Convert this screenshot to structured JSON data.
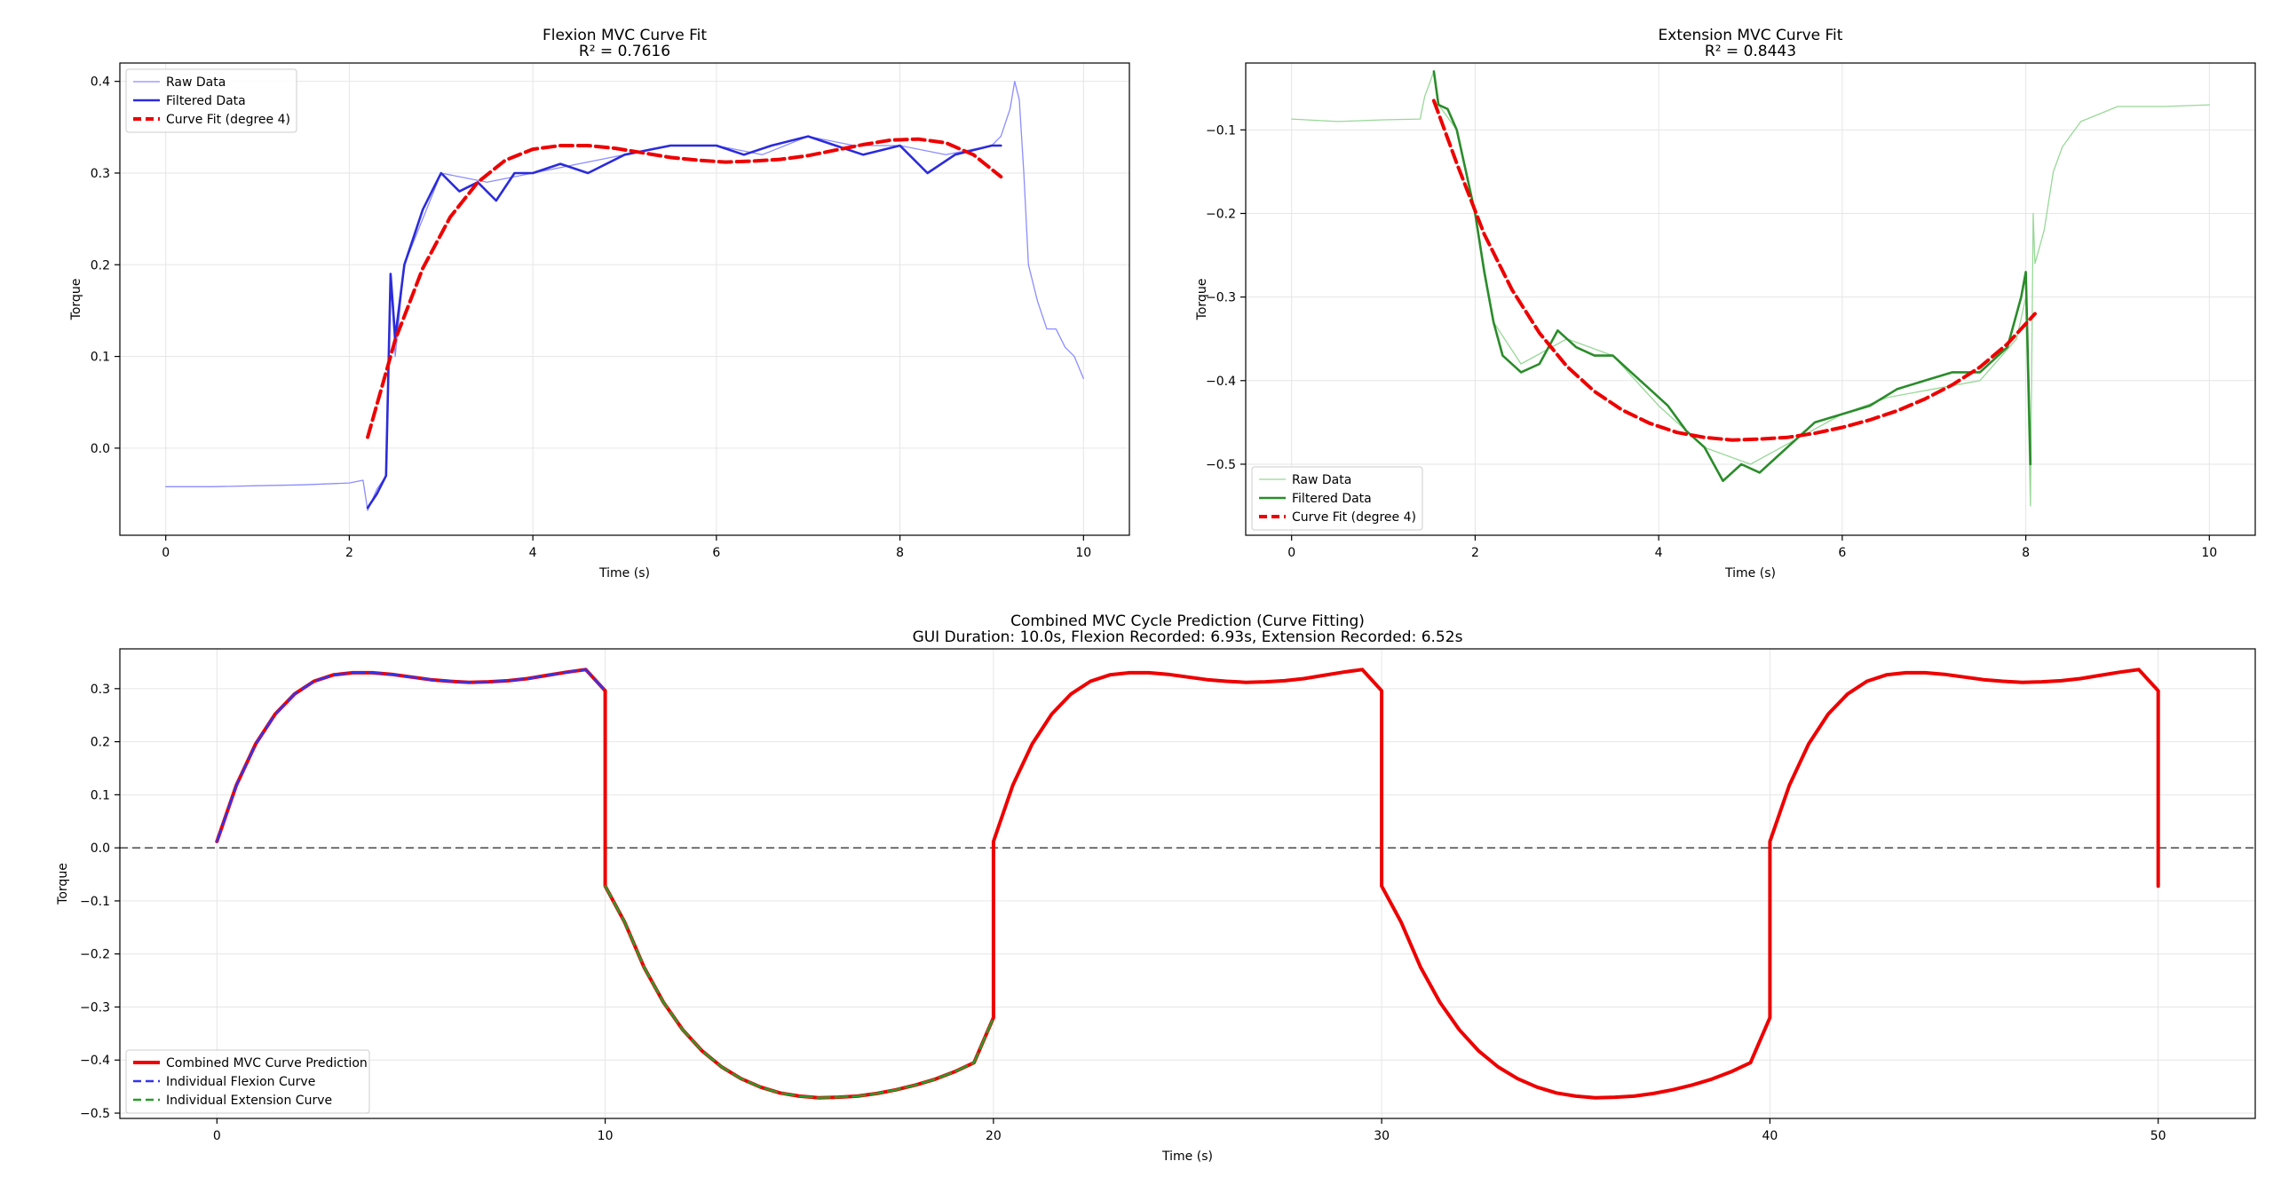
{
  "chart_data": [
    {
      "type": "line",
      "title": "Flexion MVC Curve Fit",
      "subtitle": "R² = 0.7616",
      "xlabel": "Time (s)",
      "ylabel": "Torque",
      "xlim": [
        -0.5,
        10.5
      ],
      "ylim": [
        -0.095,
        0.42
      ],
      "xticks": [
        0,
        2,
        4,
        6,
        8,
        10
      ],
      "yticks": [
        0.0,
        0.1,
        0.2,
        0.3,
        0.4
      ],
      "grid": true,
      "legend_position": "upper left",
      "series": [
        {
          "name": "Raw Data",
          "color": "#8c8cff",
          "style": "thin",
          "points": [
            [
              0,
              -0.042
            ],
            [
              0.5,
              -0.042
            ],
            [
              1.0,
              -0.041
            ],
            [
              1.5,
              -0.04
            ],
            [
              2.0,
              -0.038
            ],
            [
              2.15,
              -0.035
            ],
            [
              2.2,
              -0.068
            ],
            [
              2.3,
              -0.045
            ],
            [
              2.4,
              -0.03
            ],
            [
              2.45,
              0.19
            ],
            [
              2.5,
              0.1
            ],
            [
              2.6,
              0.2
            ],
            [
              2.8,
              0.25
            ],
            [
              3.0,
              0.3
            ],
            [
              3.5,
              0.29
            ],
            [
              4.0,
              0.3
            ],
            [
              4.5,
              0.31
            ],
            [
              5.0,
              0.32
            ],
            [
              5.5,
              0.33
            ],
            [
              6.0,
              0.33
            ],
            [
              6.5,
              0.32
            ],
            [
              7.0,
              0.34
            ],
            [
              7.5,
              0.33
            ],
            [
              8.0,
              0.33
            ],
            [
              8.5,
              0.32
            ],
            [
              9.0,
              0.33
            ],
            [
              9.1,
              0.34
            ],
            [
              9.2,
              0.37
            ],
            [
              9.25,
              0.4
            ],
            [
              9.3,
              0.38
            ],
            [
              9.35,
              0.3
            ],
            [
              9.4,
              0.2
            ],
            [
              9.5,
              0.16
            ],
            [
              9.6,
              0.13
            ],
            [
              9.7,
              0.13
            ],
            [
              9.8,
              0.11
            ],
            [
              9.9,
              0.1
            ],
            [
              10.0,
              0.076
            ]
          ]
        },
        {
          "name": "Filtered Data",
          "color": "#2b2bdc",
          "style": "solid",
          "points": [
            [
              2.2,
              -0.065
            ],
            [
              2.3,
              -0.05
            ],
            [
              2.4,
              -0.03
            ],
            [
              2.45,
              0.19
            ],
            [
              2.5,
              0.12
            ],
            [
              2.6,
              0.2
            ],
            [
              2.7,
              0.23
            ],
            [
              2.8,
              0.26
            ],
            [
              2.9,
              0.28
            ],
            [
              3.0,
              0.3
            ],
            [
              3.2,
              0.28
            ],
            [
              3.4,
              0.29
            ],
            [
              3.6,
              0.27
            ],
            [
              3.8,
              0.3
            ],
            [
              4.0,
              0.3
            ],
            [
              4.3,
              0.31
            ],
            [
              4.6,
              0.3
            ],
            [
              5.0,
              0.32
            ],
            [
              5.5,
              0.33
            ],
            [
              6.0,
              0.33
            ],
            [
              6.3,
              0.32
            ],
            [
              6.6,
              0.33
            ],
            [
              7.0,
              0.34
            ],
            [
              7.3,
              0.33
            ],
            [
              7.6,
              0.32
            ],
            [
              8.0,
              0.33
            ],
            [
              8.3,
              0.3
            ],
            [
              8.6,
              0.32
            ],
            [
              9.0,
              0.33
            ],
            [
              9.1,
              0.33
            ]
          ]
        },
        {
          "name": "Curve Fit (degree 4)",
          "color": "#ee0000",
          "style": "dashed",
          "points": [
            [
              2.2,
              0.012
            ],
            [
              2.5,
              0.118
            ],
            [
              2.8,
              0.196
            ],
            [
              3.1,
              0.252
            ],
            [
              3.4,
              0.29
            ],
            [
              3.7,
              0.314
            ],
            [
              4.0,
              0.326
            ],
            [
              4.3,
              0.33
            ],
            [
              4.6,
              0.33
            ],
            [
              4.9,
              0.327
            ],
            [
              5.2,
              0.322
            ],
            [
              5.5,
              0.317
            ],
            [
              5.8,
              0.314
            ],
            [
              6.1,
              0.312
            ],
            [
              6.4,
              0.313
            ],
            [
              6.7,
              0.315
            ],
            [
              7.0,
              0.319
            ],
            [
              7.3,
              0.325
            ],
            [
              7.6,
              0.331
            ],
            [
              7.9,
              0.336
            ],
            [
              8.2,
              0.337
            ],
            [
              8.5,
              0.333
            ],
            [
              8.8,
              0.32
            ],
            [
              9.1,
              0.296
            ]
          ]
        }
      ]
    },
    {
      "type": "line",
      "title": "Extension MVC Curve Fit",
      "subtitle": "R² = 0.8443",
      "xlabel": "Time (s)",
      "ylabel": "Torque",
      "xlim": [
        -0.5,
        10.5
      ],
      "ylim": [
        -0.585,
        -0.02
      ],
      "xticks": [
        0,
        2,
        4,
        6,
        8,
        10
      ],
      "yticks": [
        -0.1,
        -0.2,
        -0.3,
        -0.4,
        -0.5
      ],
      "grid": true,
      "legend_position": "lower left",
      "series": [
        {
          "name": "Raw Data",
          "color": "#98d898",
          "style": "thin",
          "points": [
            [
              0,
              -0.087
            ],
            [
              0.5,
              -0.09
            ],
            [
              1.0,
              -0.088
            ],
            [
              1.4,
              -0.087
            ],
            [
              1.45,
              -0.06
            ],
            [
              1.55,
              -0.03
            ],
            [
              1.6,
              -0.07
            ],
            [
              1.8,
              -0.1
            ],
            [
              2.0,
              -0.2
            ],
            [
              2.2,
              -0.33
            ],
            [
              2.5,
              -0.38
            ],
            [
              3.0,
              -0.35
            ],
            [
              3.5,
              -0.37
            ],
            [
              4.0,
              -0.43
            ],
            [
              4.5,
              -0.48
            ],
            [
              5.0,
              -0.5
            ],
            [
              5.5,
              -0.47
            ],
            [
              6.0,
              -0.44
            ],
            [
              6.5,
              -0.42
            ],
            [
              7.0,
              -0.41
            ],
            [
              7.5,
              -0.4
            ],
            [
              7.9,
              -0.35
            ],
            [
              8.0,
              -0.3
            ],
            [
              8.05,
              -0.55
            ],
            [
              8.08,
              -0.2
            ],
            [
              8.1,
              -0.26
            ],
            [
              8.2,
              -0.22
            ],
            [
              8.3,
              -0.15
            ],
            [
              8.4,
              -0.12
            ],
            [
              8.6,
              -0.09
            ],
            [
              9.0,
              -0.072
            ],
            [
              9.5,
              -0.072
            ],
            [
              10.0,
              -0.07
            ]
          ]
        },
        {
          "name": "Filtered Data",
          "color": "#2a8c2a",
          "style": "solid",
          "points": [
            [
              1.55,
              -0.03
            ],
            [
              1.6,
              -0.07
            ],
            [
              1.7,
              -0.075
            ],
            [
              1.8,
              -0.1
            ],
            [
              1.9,
              -0.15
            ],
            [
              2.0,
              -0.2
            ],
            [
              2.1,
              -0.27
            ],
            [
              2.2,
              -0.33
            ],
            [
              2.3,
              -0.37
            ],
            [
              2.5,
              -0.39
            ],
            [
              2.7,
              -0.38
            ],
            [
              2.9,
              -0.34
            ],
            [
              3.1,
              -0.36
            ],
            [
              3.3,
              -0.37
            ],
            [
              3.5,
              -0.37
            ],
            [
              3.7,
              -0.39
            ],
            [
              3.9,
              -0.41
            ],
            [
              4.1,
              -0.43
            ],
            [
              4.3,
              -0.46
            ],
            [
              4.5,
              -0.48
            ],
            [
              4.7,
              -0.52
            ],
            [
              4.9,
              -0.5
            ],
            [
              5.1,
              -0.51
            ],
            [
              5.3,
              -0.49
            ],
            [
              5.5,
              -0.47
            ],
            [
              5.7,
              -0.45
            ],
            [
              6.0,
              -0.44
            ],
            [
              6.3,
              -0.43
            ],
            [
              6.6,
              -0.41
            ],
            [
              6.9,
              -0.4
            ],
            [
              7.2,
              -0.39
            ],
            [
              7.5,
              -0.39
            ],
            [
              7.8,
              -0.36
            ],
            [
              7.95,
              -0.3
            ],
            [
              8.0,
              -0.27
            ],
            [
              8.05,
              -0.5
            ]
          ]
        },
        {
          "name": "Curve Fit (degree 4)",
          "color": "#ee0000",
          "style": "dashed",
          "points": [
            [
              1.55,
              -0.065
            ],
            [
              1.8,
              -0.14
            ],
            [
              2.1,
              -0.225
            ],
            [
              2.4,
              -0.291
            ],
            [
              2.7,
              -0.343
            ],
            [
              3.0,
              -0.383
            ],
            [
              3.3,
              -0.413
            ],
            [
              3.6,
              -0.435
            ],
            [
              3.9,
              -0.451
            ],
            [
              4.2,
              -0.462
            ],
            [
              4.5,
              -0.468
            ],
            [
              4.8,
              -0.471
            ],
            [
              5.1,
              -0.47
            ],
            [
              5.4,
              -0.468
            ],
            [
              5.7,
              -0.463
            ],
            [
              6.0,
              -0.456
            ],
            [
              6.3,
              -0.447
            ],
            [
              6.6,
              -0.436
            ],
            [
              6.9,
              -0.422
            ],
            [
              7.2,
              -0.405
            ],
            [
              7.5,
              -0.384
            ],
            [
              7.8,
              -0.356
            ],
            [
              8.1,
              -0.32
            ]
          ]
        }
      ]
    },
    {
      "type": "line",
      "title": "Combined MVC Cycle Prediction (Curve Fitting)",
      "subtitle": "GUI Duration: 10.0s, Flexion Recorded: 6.93s, Extension Recorded: 6.52s",
      "xlabel": "Time (s)",
      "ylabel": "Torque",
      "xlim": [
        -2.5,
        52.5
      ],
      "ylim": [
        -0.51,
        0.375
      ],
      "xticks": [
        0,
        10,
        20,
        30,
        40,
        50
      ],
      "yticks": [
        0.3,
        0.2,
        0.1,
        0.0,
        -0.1,
        -0.2,
        -0.3,
        -0.4,
        -0.5
      ],
      "grid": true,
      "hline": {
        "y": 0.0,
        "color": "#555555",
        "style": "dashed"
      },
      "legend_position": "lower left",
      "cycle": {
        "period": 20,
        "flexion": [
          [
            0,
            0.012
          ],
          [
            0.5,
            0.118
          ],
          [
            1.0,
            0.196
          ],
          [
            1.5,
            0.252
          ],
          [
            2.0,
            0.29
          ],
          [
            2.5,
            0.314
          ],
          [
            3.0,
            0.326
          ],
          [
            3.5,
            0.33
          ],
          [
            4.0,
            0.33
          ],
          [
            4.5,
            0.327
          ],
          [
            5.0,
            0.322
          ],
          [
            5.5,
            0.317
          ],
          [
            6.0,
            0.314
          ],
          [
            6.5,
            0.312
          ],
          [
            7.0,
            0.313
          ],
          [
            7.5,
            0.315
          ],
          [
            8.0,
            0.319
          ],
          [
            8.5,
            0.325
          ],
          [
            9.0,
            0.331
          ],
          [
            9.5,
            0.336
          ],
          [
            10.0,
            0.296
          ]
        ],
        "extension": [
          [
            10.0,
            -0.072
          ],
          [
            10.5,
            -0.14
          ],
          [
            11.0,
            -0.225
          ],
          [
            11.5,
            -0.291
          ],
          [
            12.0,
            -0.343
          ],
          [
            12.5,
            -0.383
          ],
          [
            13.0,
            -0.413
          ],
          [
            13.5,
            -0.435
          ],
          [
            14.0,
            -0.451
          ],
          [
            14.5,
            -0.462
          ],
          [
            15.0,
            -0.468
          ],
          [
            15.5,
            -0.471
          ],
          [
            16.0,
            -0.47
          ],
          [
            16.5,
            -0.468
          ],
          [
            17.0,
            -0.463
          ],
          [
            17.5,
            -0.456
          ],
          [
            18.0,
            -0.447
          ],
          [
            18.5,
            -0.436
          ],
          [
            19.0,
            -0.422
          ],
          [
            19.5,
            -0.405
          ],
          [
            20.0,
            -0.32
          ]
        ]
      },
      "series": [
        {
          "name": "Combined MVC Curve Prediction",
          "color": "#ee0000",
          "style": "solid",
          "x_range": [
            0,
            50
          ]
        },
        {
          "name": "Individual Flexion Curve",
          "color": "#3333ee",
          "style": "dashed",
          "x_range": [
            0,
            10
          ]
        },
        {
          "name": "Individual Extension Curve",
          "color": "#2a9a2a",
          "style": "dashed",
          "x_range": [
            10,
            20
          ]
        }
      ]
    }
  ]
}
